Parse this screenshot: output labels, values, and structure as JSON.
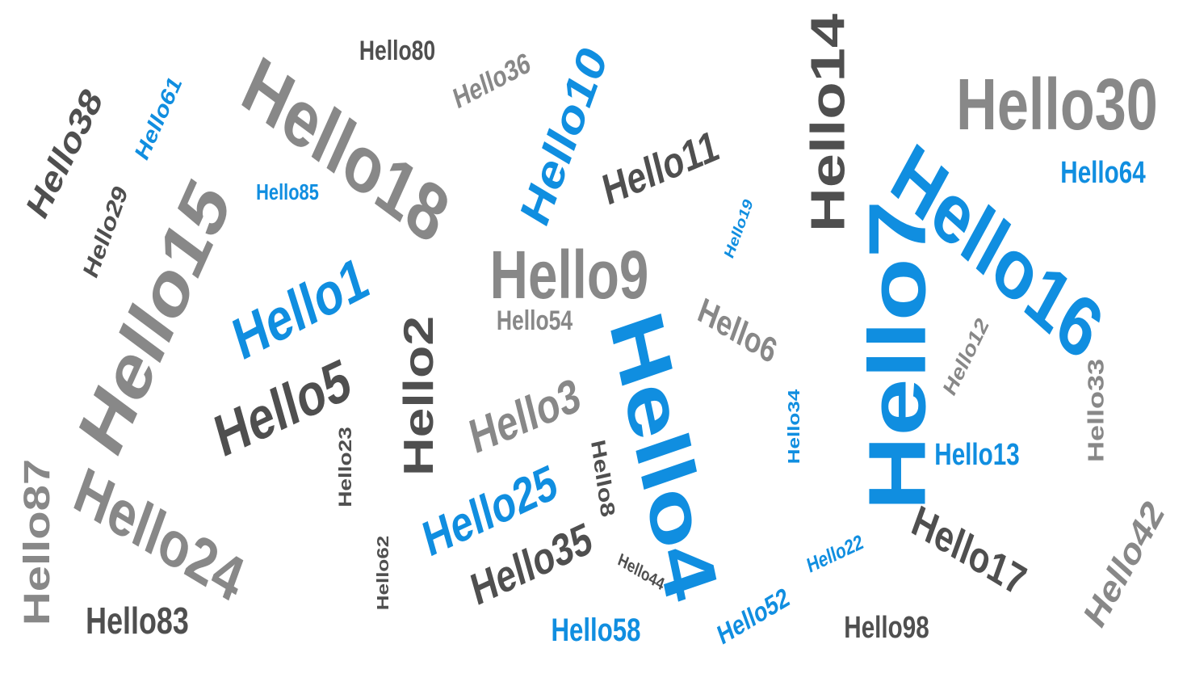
{
  "colors": {
    "blue": "#108ee0",
    "light_gray": "#888888",
    "dark_gray": "#4f4f4f",
    "background": "#ffffff"
  },
  "words": [
    "Hello1",
    "Hello2",
    "Hello3",
    "Hello4",
    "Hello5",
    "Hello6",
    "Hello7",
    "Hello8",
    "Hello9",
    "Hello10",
    "Hello11",
    "Hello12",
    "Hello13",
    "Hello14",
    "Hello15",
    "Hello16",
    "Hello17",
    "Hello18",
    "Hello19",
    "Hello22",
    "Hello23",
    "Hello24",
    "Hello25",
    "Hello29",
    "Hello30",
    "Hello33",
    "Hello34",
    "Hello35",
    "Hello36",
    "Hello38",
    "Hello42",
    "Hello44",
    "Hello52",
    "Hello54",
    "Hello58",
    "Hello61",
    "Hello62",
    "Hello64",
    "Hello80",
    "Hello83",
    "Hello85",
    "Hello87",
    "Hello98"
  ]
}
